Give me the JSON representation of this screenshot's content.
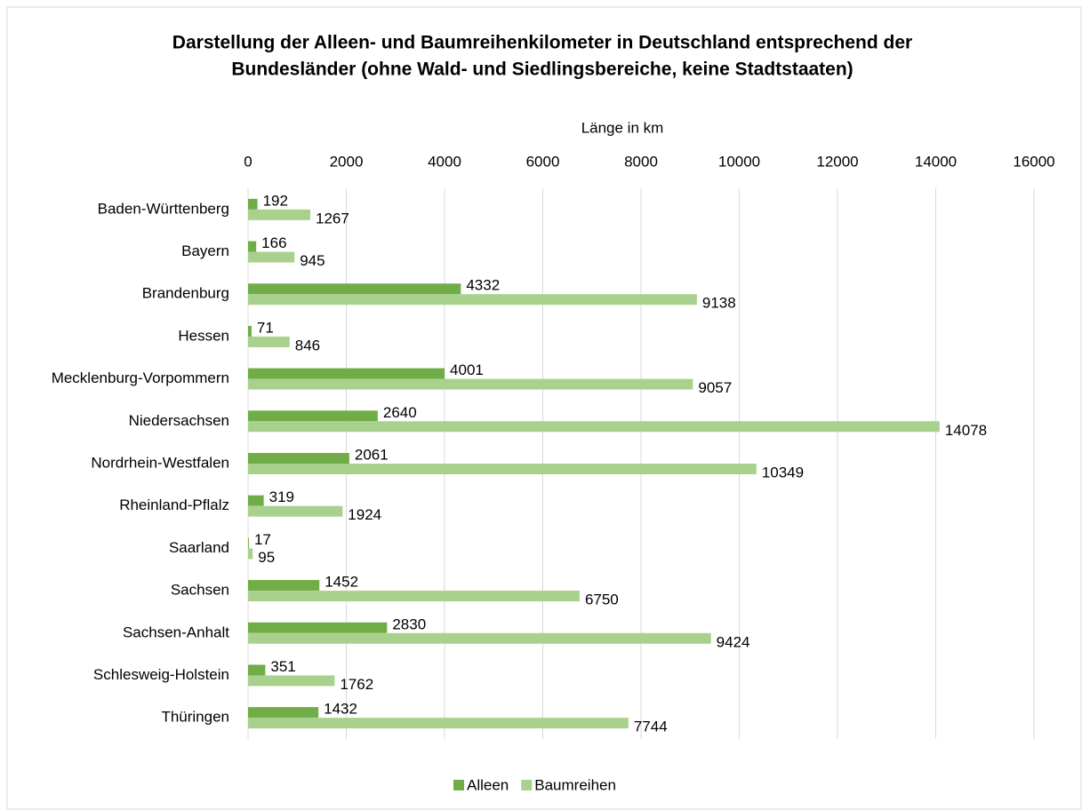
{
  "chart_data": {
    "type": "bar",
    "orientation": "horizontal",
    "title": [
      "Darstellung der Alleen- und Baumreihenkilometer in Deutschland entsprechend der",
      "Bundesländer (ohne Wald- und Siedlingsbereiche, keine Stadtstaaten)"
    ],
    "x_label": "Länge in km",
    "categories": [
      "Baden-Württenberg",
      "Bayern",
      "Brandenburg",
      "Hessen",
      "Mecklenburg-Vorpommern",
      "Niedersachsen",
      "Nordrhein-Westfalen",
      "Rheinland-Pflalz",
      "Saarland",
      "Sachsen",
      "Sachsen-Anhalt",
      "Schlesweig-Holstein",
      "Thüringen"
    ],
    "series": [
      {
        "name": "Alleen",
        "color": "#70ad47",
        "values": [
          192,
          166,
          4332,
          71,
          4001,
          2640,
          2061,
          319,
          17,
          1452,
          2830,
          351,
          1432
        ]
      },
      {
        "name": "Baumreihen",
        "color": "#a9d18e",
        "values": [
          1267,
          945,
          9138,
          846,
          9057,
          14078,
          10349,
          1924,
          95,
          6750,
          9424,
          1762,
          7744
        ]
      }
    ],
    "xlim": [
      0,
      16000
    ],
    "xticks": [
      0,
      2000,
      4000,
      6000,
      8000,
      10000,
      12000,
      14000,
      16000
    ],
    "grid": true,
    "legend": "bottom"
  }
}
